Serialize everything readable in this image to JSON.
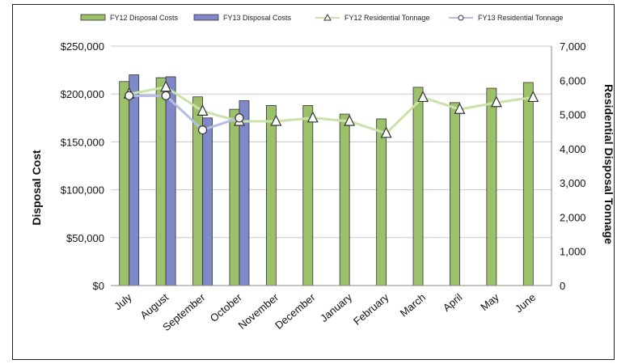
{
  "chart_data": {
    "type": "bar",
    "categories": [
      "July",
      "August",
      "September",
      "October",
      "November",
      "December",
      "January",
      "February",
      "March",
      "April",
      "May",
      "June"
    ],
    "series": [
      {
        "name": "FY12 Disposal Costs",
        "kind": "bar",
        "axis": "left",
        "color": "#9dc16b",
        "values": [
          213000,
          217000,
          197000,
          184000,
          188000,
          188000,
          179000,
          174000,
          207000,
          191000,
          206000,
          212000
        ]
      },
      {
        "name": "FY13 Disposal Costs",
        "kind": "bar",
        "axis": "left",
        "color": "#7f88c8",
        "values": [
          220000,
          218000,
          175000,
          193000,
          null,
          null,
          null,
          null,
          null,
          null,
          null,
          null
        ]
      },
      {
        "name": "FY12 Residential Tonnage",
        "kind": "line",
        "marker": "triangle",
        "axis": "right",
        "color": "#c9e3a8",
        "values": [
          5600,
          5800,
          5100,
          4800,
          4800,
          4900,
          4800,
          4450,
          5500,
          5150,
          5350,
          5500
        ]
      },
      {
        "name": "FY13 Residential Tonnage",
        "kind": "line",
        "marker": "circle",
        "axis": "right",
        "color": "#b6bde3",
        "values": [
          5550,
          5550,
          4550,
          4900,
          null,
          null,
          null,
          null,
          null,
          null,
          null,
          null
        ]
      }
    ],
    "ylabel": "Disposal Cost",
    "y2label": "Residential Disposal Tonnage",
    "ylim": [
      0,
      250000
    ],
    "y2lim": [
      0,
      7000
    ],
    "yticks": [
      "$0",
      "$50,000",
      "$100,000",
      "$150,000",
      "$200,000",
      "$250,000"
    ],
    "y2ticks": [
      "0",
      "1,000",
      "2,000",
      "3,000",
      "4,000",
      "5,000",
      "6,000",
      "7,000"
    ],
    "grid": true,
    "legend": "top"
  }
}
